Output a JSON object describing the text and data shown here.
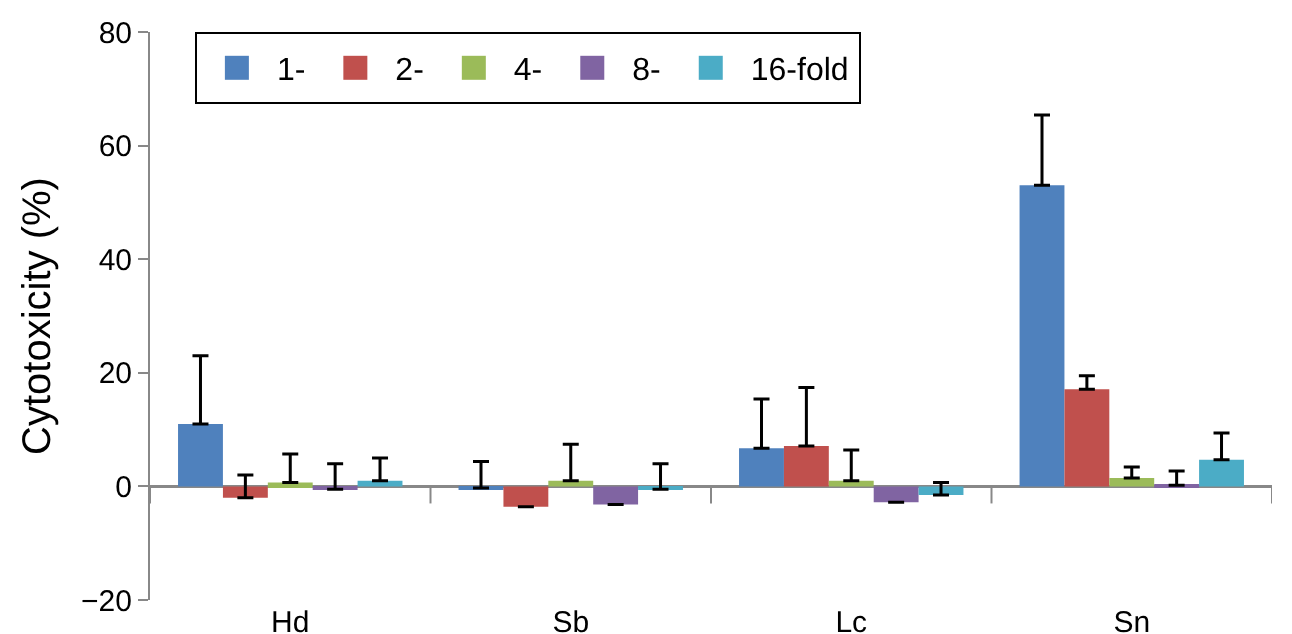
{
  "chart_data": {
    "type": "bar",
    "ylabel": "Cytotoxicity (%)",
    "categories": [
      "Hd",
      "Sb",
      "Lc",
      "Sn"
    ],
    "ylim": [
      -20,
      80
    ],
    "yticks": [
      -20,
      0,
      20,
      40,
      60,
      80
    ],
    "legend": "top left",
    "series": [
      {
        "name": "1-",
        "color": "#4f81bd",
        "values": [
          11,
          -0.3,
          6.7,
          53
        ],
        "errors": [
          [
            11,
            23
          ],
          [
            -0.3,
            4.4
          ],
          [
            6.7,
            15.4
          ],
          [
            53,
            65.4
          ]
        ]
      },
      {
        "name": "2-",
        "color": "#c0504d",
        "values": [
          -2,
          -3.6,
          7.1,
          17.1
        ],
        "errors": [
          [
            -2,
            2
          ],
          null,
          [
            7.1,
            17.4
          ],
          [
            17.1,
            19.5
          ]
        ]
      },
      {
        "name": "4-",
        "color": "#9bbb59",
        "values": [
          0.7,
          1,
          1,
          1.5
        ],
        "errors": [
          [
            0.7,
            5.7
          ],
          [
            1,
            7.4
          ],
          [
            1,
            6.4
          ],
          [
            1.5,
            3.4
          ]
        ]
      },
      {
        "name": "8-",
        "color": "#8064a2",
        "values": [
          -0.5,
          -3.2,
          -2.8,
          0.2
        ],
        "errors": [
          [
            -0.5,
            4
          ],
          null,
          null,
          [
            0.2,
            2.7
          ]
        ]
      },
      {
        "name": "16-fold",
        "color": "#4bacc6",
        "values": [
          1,
          -0.5,
          -1.5,
          4.7
        ],
        "errors": [
          [
            1,
            5
          ],
          [
            -0.5,
            4
          ],
          [
            -1.5,
            0.7
          ],
          [
            4.7,
            9.4
          ]
        ]
      }
    ]
  }
}
